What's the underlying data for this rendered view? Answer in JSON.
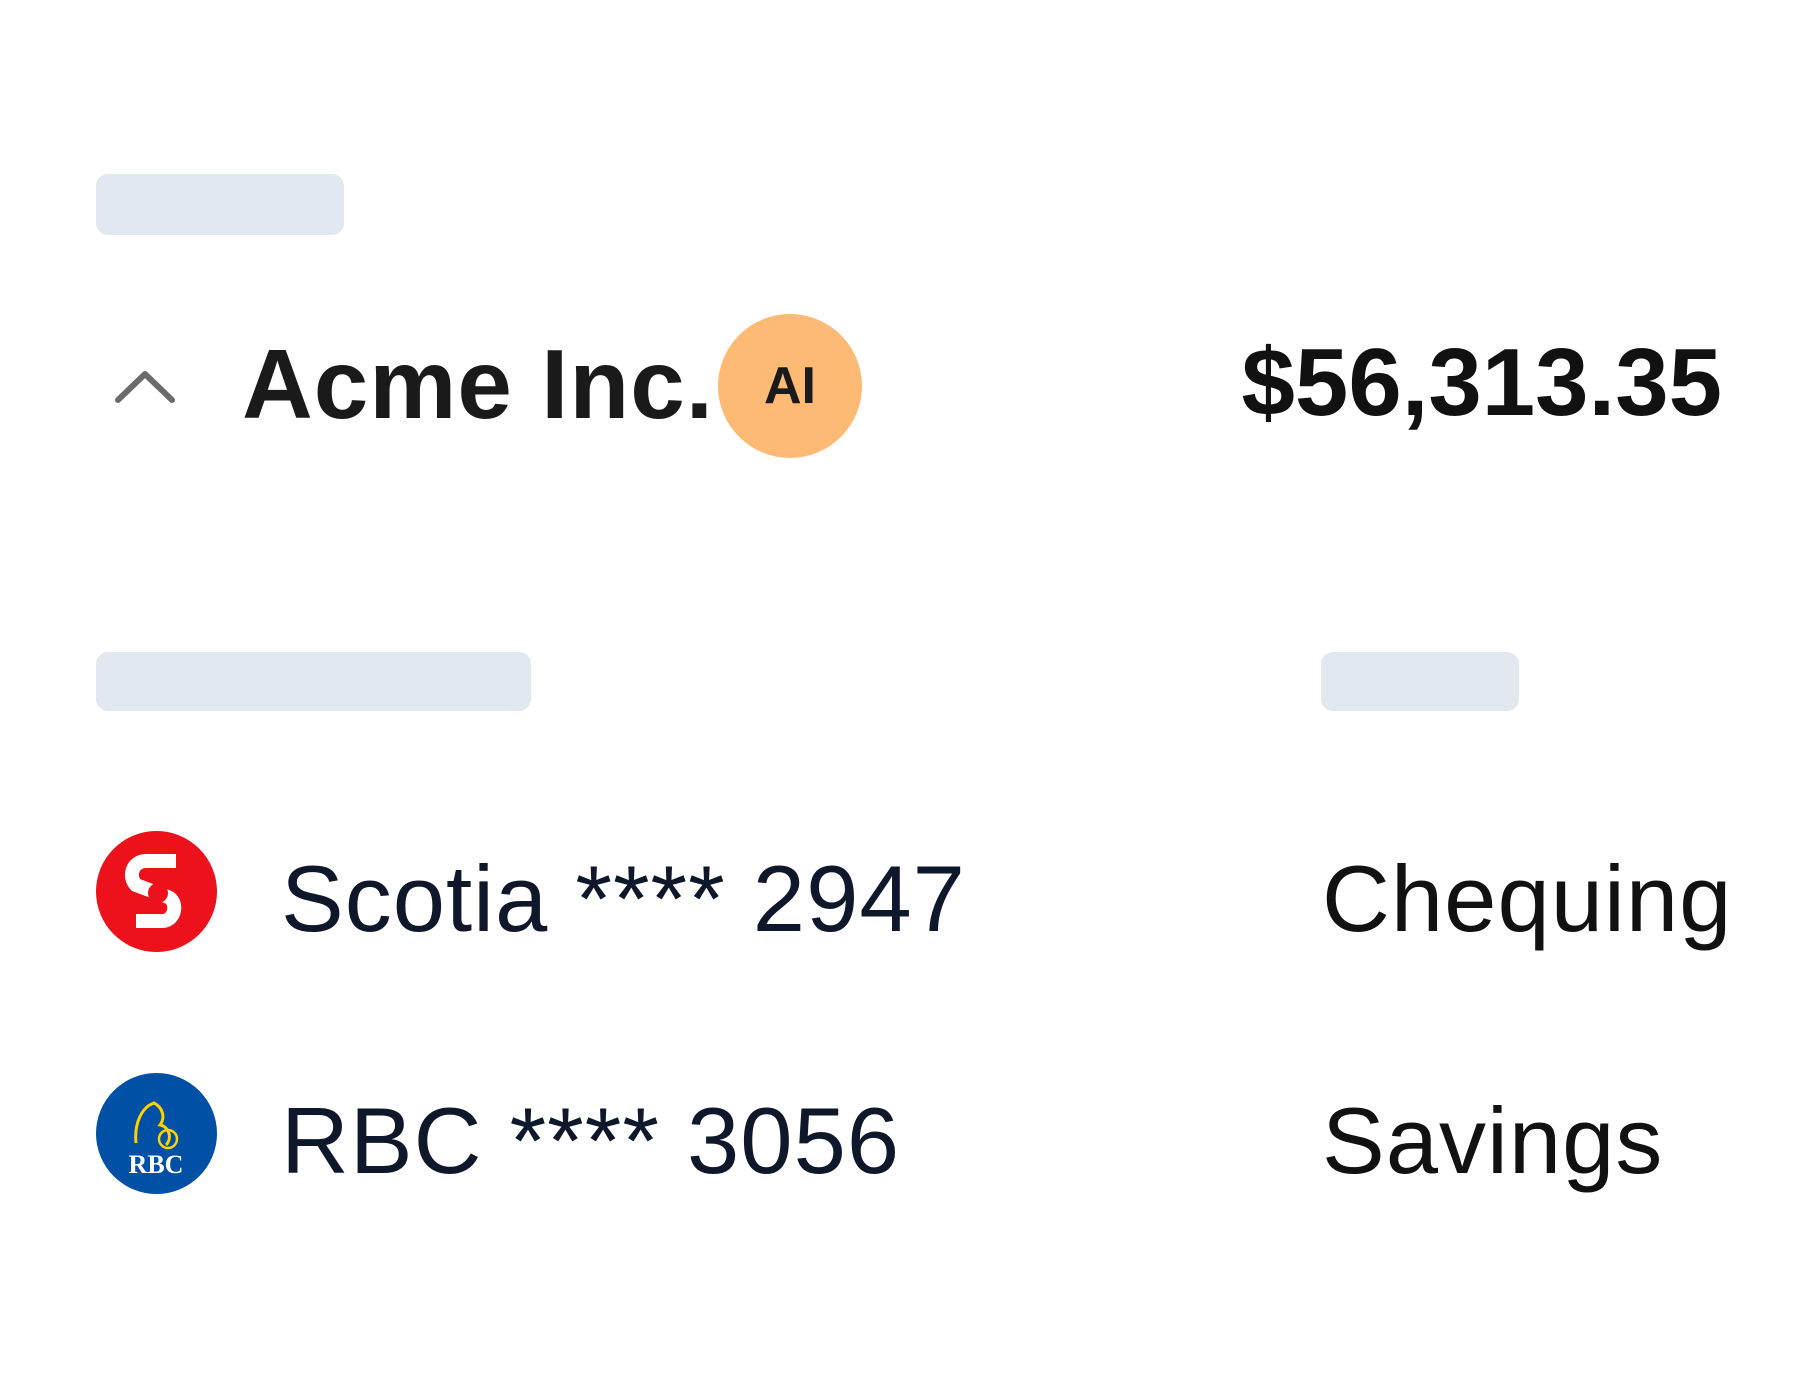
{
  "company": {
    "name": "Acme Inc.",
    "badge": "AI",
    "badge_color": "#fdba74",
    "total": "$56,313.35",
    "expanded": true
  },
  "accounts": [
    {
      "bank": "Scotia",
      "label": "Scotia **** 2947",
      "type": "Chequing",
      "logo_text": "S",
      "logo_color": "#ec111a",
      "icon": "scotiabank-logo"
    },
    {
      "bank": "RBC",
      "label": "RBC **** 3056",
      "type": "Savings",
      "logo_text": "RBC",
      "logo_color": "#0051a5",
      "icon": "rbc-logo"
    }
  ],
  "colors": {
    "skeleton": "#e2e8f0"
  }
}
